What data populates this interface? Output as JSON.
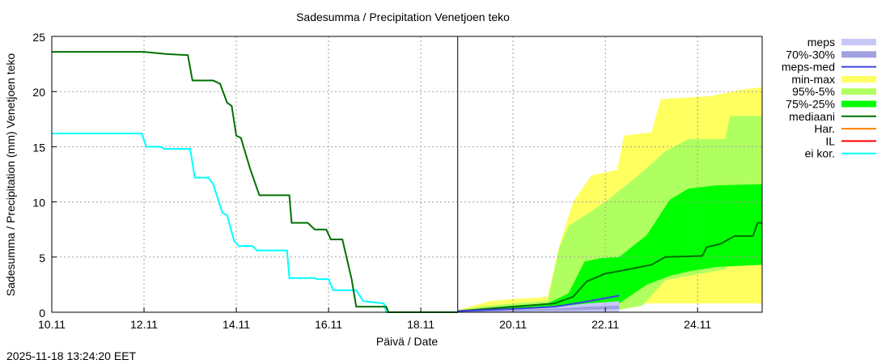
{
  "chart_data": {
    "type": "area",
    "title": "Sadesumma / Precipitation  Venetjoen teko",
    "xlabel": "Päivä / Date",
    "ylabel": "Sadesumma / Precipitation (mm)  Venetjoen teko",
    "ylim": [
      0,
      25
    ],
    "xlim_days_from_10_11": [
      0,
      15.4
    ],
    "yticks": [
      "0",
      "5",
      "10",
      "15",
      "20",
      "25"
    ],
    "xticks": [
      {
        "d": 0,
        "label": "10.11"
      },
      {
        "d": 2,
        "label": "12.11"
      },
      {
        "d": 4,
        "label": "14.11"
      },
      {
        "d": 6,
        "label": "16.11"
      },
      {
        "d": 8,
        "label": "18.11"
      },
      {
        "d": 10,
        "label": "20.11"
      },
      {
        "d": 12,
        "label": "22.11"
      },
      {
        "d": 14,
        "label": "24.11"
      }
    ],
    "grid": true,
    "forecast_start_day": 8.8,
    "legend": [
      {
        "label": "meps",
        "color": "#c8c8f8",
        "kind": "box"
      },
      {
        "label": "70%-30%",
        "color": "#a0a0e0",
        "kind": "box"
      },
      {
        "label": "meps-med",
        "color": "#4040e0",
        "kind": "line"
      },
      {
        "label": "min-max",
        "color": "#ffff60",
        "kind": "box"
      },
      {
        "label": "95%-5%",
        "color": "#b0ff60",
        "kind": "box"
      },
      {
        "label": "75%-25%",
        "color": "#00ff00",
        "kind": "box"
      },
      {
        "label": "mediaani",
        "color": "#007000",
        "kind": "line"
      },
      {
        "label": "Har.",
        "color": "#ff8000",
        "kind": "line"
      },
      {
        "label": "IL",
        "color": "#ff0000",
        "kind": "line"
      },
      {
        "label": "ei kor.",
        "color": "#00ffff",
        "kind": "line"
      }
    ],
    "bands": [
      {
        "name": "min-max",
        "color": "#ffff60",
        "x": [
          8.8,
          9.5,
          10.0,
          10.5,
          10.75,
          11.0,
          11.3,
          11.7,
          12.26,
          12.4,
          13.0,
          13.2,
          14.3,
          15.0,
          15.4
        ],
        "upper": [
          0.2,
          1.0,
          1.2,
          1.3,
          1.4,
          6.0,
          10.0,
          12.4,
          12.9,
          16.0,
          16.3,
          19.3,
          19.6,
          20.2,
          20.4
        ],
        "lower": [
          0,
          0,
          0,
          0,
          0,
          0,
          0,
          0,
          0.8,
          0.8,
          0.8,
          0.8,
          0.8,
          0.8,
          0.8
        ]
      },
      {
        "name": "95%-5%",
        "color": "#b0ff60",
        "x": [
          8.8,
          9.5,
          10.0,
          10.75,
          11.0,
          11.2,
          12.0,
          12.8,
          13.3,
          13.8,
          14.6,
          14.7,
          15.4
        ],
        "upper": [
          0.2,
          0.6,
          0.8,
          1.0,
          5.8,
          7.8,
          10.0,
          12.7,
          14.6,
          15.7,
          15.7,
          17.8,
          17.8
        ],
        "lower": [
          0,
          0,
          0,
          0,
          0,
          0,
          0,
          0.6,
          2.9,
          3.3,
          3.9,
          4.3,
          4.5
        ]
      },
      {
        "name": "75%-25%",
        "color": "#00ff00",
        "x": [
          8.8,
          9.5,
          10.0,
          10.75,
          11.2,
          11.55,
          11.9,
          12.3,
          12.9,
          13.4,
          13.8,
          14.4,
          15.4
        ],
        "upper": [
          0.15,
          0.4,
          0.6,
          0.8,
          1.7,
          4.6,
          4.9,
          5.0,
          7.0,
          10.2,
          11.2,
          11.5,
          11.6
        ],
        "lower": [
          0,
          0,
          0,
          0,
          0,
          0,
          0.5,
          0.8,
          2.5,
          3.3,
          3.7,
          4.1,
          4.3
        ]
      },
      {
        "name": "meps",
        "color": "#c8c8f8",
        "x": [
          8.8,
          10.0,
          11.0,
          11.6,
          12.3
        ],
        "upper": [
          0.1,
          0.3,
          0.5,
          0.8,
          1.0
        ],
        "lower": [
          0,
          0,
          0,
          0,
          0
        ]
      },
      {
        "name": "70%-30%",
        "color": "#a0a0e0",
        "x": [
          8.8,
          10.0,
          11.0,
          11.6,
          12.3
        ],
        "upper": [
          0.05,
          0.2,
          0.35,
          0.5,
          0.6
        ],
        "lower": [
          0,
          0.1,
          0.15,
          0.2,
          0.3
        ]
      }
    ],
    "lines": [
      {
        "name": "ei kor.",
        "color": "#00ffff",
        "x": [
          0,
          1.95,
          2.05,
          2.35,
          2.45,
          3.0,
          3.1,
          3.4,
          3.5,
          3.7,
          3.8,
          3.95,
          4.05,
          4.35,
          4.45,
          5.1,
          5.15,
          5.7,
          5.75,
          6.0,
          6.1,
          6.6,
          6.75,
          7.2,
          7.25,
          8.8
        ],
        "y": [
          16.2,
          16.2,
          15.0,
          15.0,
          14.8,
          14.8,
          12.2,
          12.2,
          11.6,
          9.0,
          8.8,
          6.5,
          6.0,
          6.0,
          5.6,
          5.6,
          3.1,
          3.1,
          3.0,
          3.0,
          2.0,
          2.0,
          1.0,
          0.8,
          0,
          0
        ]
      },
      {
        "name": "mediaani-observed",
        "color": "#007000",
        "x": [
          0,
          2.0,
          2.5,
          2.95,
          3.05,
          3.5,
          3.65,
          3.8,
          3.9,
          4.0,
          4.1,
          4.3,
          4.5,
          5.15,
          5.2,
          5.55,
          5.7,
          5.95,
          6.05,
          6.3,
          6.5,
          6.6,
          7.25,
          7.3,
          8.8
        ],
        "y": [
          23.6,
          23.6,
          23.4,
          23.3,
          21.0,
          21.0,
          20.7,
          19.0,
          18.7,
          16.0,
          15.8,
          13.0,
          10.6,
          10.6,
          8.1,
          8.1,
          7.5,
          7.5,
          6.6,
          6.6,
          3.0,
          0.5,
          0.5,
          0,
          0
        ]
      },
      {
        "name": "mediaani",
        "color": "#007000",
        "x": [
          8.8,
          10.0,
          10.9,
          11.3,
          11.6,
          12.0,
          12.4,
          13.0,
          13.3,
          14.1,
          14.2,
          14.5,
          14.8,
          15.2,
          15.3,
          15.4
        ],
        "y": [
          0.1,
          0.5,
          0.8,
          1.4,
          2.8,
          3.5,
          3.8,
          4.3,
          5.0,
          5.1,
          5.9,
          6.2,
          6.9,
          6.9,
          8.1,
          8.1
        ]
      },
      {
        "name": "meps-med",
        "color": "#4040e0",
        "x": [
          8.8,
          10.0,
          10.9,
          11.5,
          12.3
        ],
        "y": [
          0.1,
          0.3,
          0.5,
          0.9,
          1.5
        ]
      }
    ],
    "timestamp": "2025-11-18 13:24:20 EET"
  }
}
